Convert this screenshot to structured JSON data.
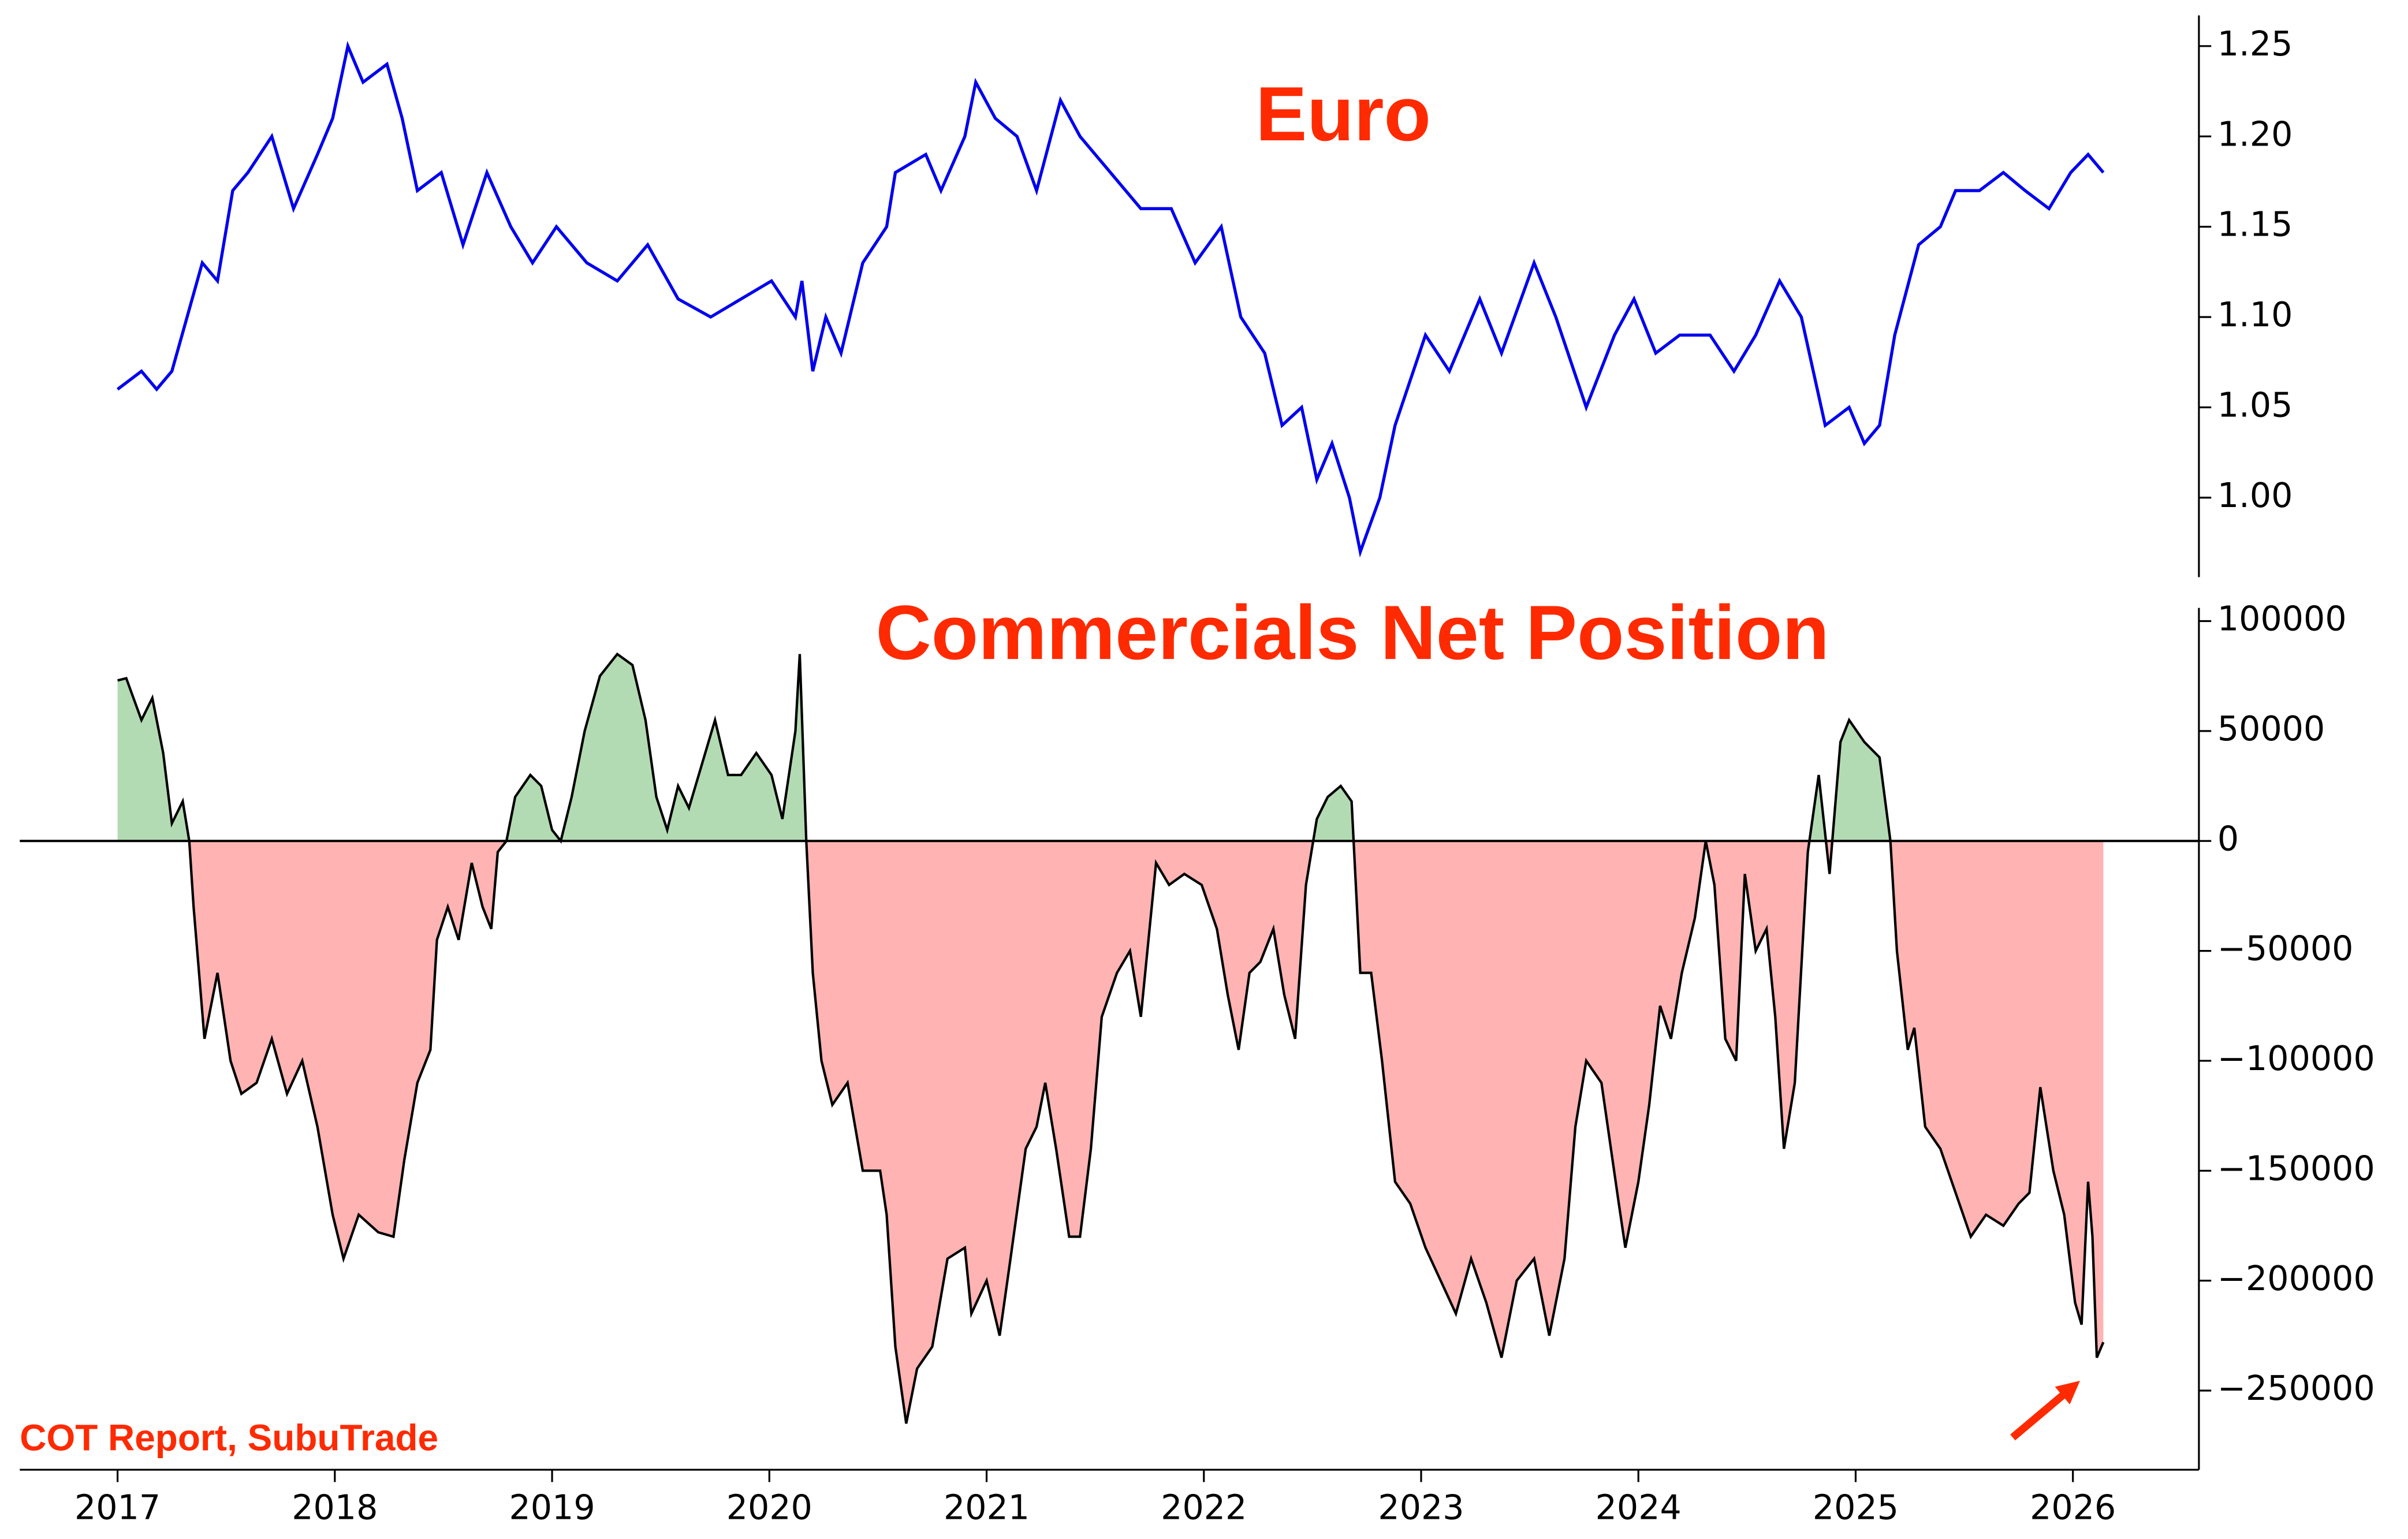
{
  "chart_data": [
    {
      "type": "line",
      "title": "Euro",
      "color": "#0000ee",
      "title_color": "#ff2a00",
      "xlim": [
        2016.55,
        2026.58
      ],
      "ylim": [
        0.956,
        1.267
      ],
      "yticks": [
        {
          "value": 1,
          "label": "1.00"
        },
        1.05,
        {
          "value": 1.1,
          "label": "1.10"
        },
        1.15,
        {
          "value": 1.2,
          "label": "1.20"
        },
        1.25
      ],
      "x": [
        2017.0,
        2017.11,
        2017.18,
        2017.25,
        2017.32,
        2017.39,
        2017.46,
        2017.53,
        2017.6,
        2017.71,
        2017.81,
        2017.92,
        2017.99,
        2018.06,
        2018.13,
        2018.24,
        2018.31,
        2018.38,
        2018.49,
        2018.59,
        2018.7,
        2018.81,
        2018.91,
        2019.02,
        2019.16,
        2019.3,
        2019.44,
        2019.58,
        2019.73,
        2019.87,
        2020.01,
        2020.12,
        2020.15,
        2020.2,
        2020.26,
        2020.33,
        2020.43,
        2020.54,
        2020.58,
        2020.72,
        2020.79,
        2020.9,
        2020.95,
        2021.04,
        2021.14,
        2021.23,
        2021.34,
        2021.43,
        2021.57,
        2021.71,
        2021.85,
        2021.96,
        2022.08,
        2022.17,
        2022.28,
        2022.36,
        2022.45,
        2022.52,
        2022.59,
        2022.67,
        2022.72,
        2022.81,
        2022.88,
        2023.02,
        2023.13,
        2023.27,
        2023.37,
        2023.52,
        2023.62,
        2023.76,
        2023.89,
        2023.98,
        2024.08,
        2024.19,
        2024.33,
        2024.44,
        2024.54,
        2024.65,
        2024.75,
        2024.86,
        2024.97,
        2025.04,
        2025.11,
        2025.18,
        2025.29,
        2025.39,
        2025.46,
        2025.57,
        2025.68,
        2025.78,
        2025.89,
        2025.99,
        2026.07,
        2026.14
      ],
      "values": [
        1.06,
        1.07,
        1.06,
        1.07,
        1.1,
        1.13,
        1.12,
        1.17,
        1.18,
        1.2,
        1.16,
        1.19,
        1.21,
        1.25,
        1.23,
        1.24,
        1.21,
        1.17,
        1.18,
        1.14,
        1.18,
        1.15,
        1.13,
        1.15,
        1.13,
        1.12,
        1.14,
        1.11,
        1.1,
        1.11,
        1.12,
        1.1,
        1.12,
        1.07,
        1.1,
        1.08,
        1.13,
        1.15,
        1.18,
        1.19,
        1.17,
        1.2,
        1.23,
        1.21,
        1.2,
        1.17,
        1.22,
        1.2,
        1.18,
        1.16,
        1.16,
        1.13,
        1.15,
        1.1,
        1.08,
        1.04,
        1.05,
        1.01,
        1.03,
        1.0,
        0.97,
        1.0,
        1.04,
        1.09,
        1.07,
        1.11,
        1.08,
        1.13,
        1.1,
        1.05,
        1.09,
        1.11,
        1.08,
        1.09,
        1.09,
        1.07,
        1.09,
        1.12,
        1.1,
        1.04,
        1.05,
        1.03,
        1.04,
        1.09,
        1.14,
        1.15,
        1.17,
        1.17,
        1.18,
        1.17,
        1.16,
        1.18,
        1.19,
        1.18
      ]
    },
    {
      "type": "area",
      "title": "Commercials Net Position",
      "color": "#000000",
      "title_color": "#ff2a00",
      "above_color": "#b3dbb3",
      "below_color": "#ffb3b3",
      "xlim": [
        2016.55,
        2026.58
      ],
      "ylim": [
        -286000,
        106000
      ],
      "xticks": [
        2017,
        2018,
        2019,
        2020,
        2021,
        2022,
        2023,
        2024,
        2025,
        2026
      ],
      "yticks": [
        {
          "value": -250000,
          "label": "−250000"
        },
        {
          "value": -200000,
          "label": "−200000"
        },
        {
          "value": -150000,
          "label": "−150000"
        },
        {
          "value": -100000,
          "label": "−100000"
        },
        {
          "value": -50000,
          "label": "−50000"
        },
        0,
        50000,
        100000
      ],
      "x": [
        2017.0,
        2017.04,
        2017.11,
        2017.16,
        2017.21,
        2017.25,
        2017.3,
        2017.33,
        2017.35,
        2017.4,
        2017.46,
        2017.52,
        2017.57,
        2017.64,
        2017.71,
        2017.78,
        2017.85,
        2017.92,
        2017.99,
        2018.04,
        2018.11,
        2018.2,
        2018.27,
        2018.32,
        2018.38,
        2018.44,
        2018.47,
        2018.52,
        2018.57,
        2018.63,
        2018.68,
        2018.72,
        2018.75,
        2018.79,
        2018.83,
        2018.9,
        2018.95,
        2019.0,
        2019.04,
        2019.09,
        2019.15,
        2019.22,
        2019.3,
        2019.37,
        2019.43,
        2019.48,
        2019.53,
        2019.58,
        2019.63,
        2019.69,
        2019.75,
        2019.81,
        2019.87,
        2019.94,
        2020.01,
        2020.06,
        2020.12,
        2020.14,
        2020.17,
        2020.2,
        2020.24,
        2020.29,
        2020.36,
        2020.43,
        2020.51,
        2020.54,
        2020.58,
        2020.63,
        2020.68,
        2020.75,
        2020.82,
        2020.9,
        2020.93,
        2021.0,
        2021.06,
        2021.11,
        2021.18,
        2021.23,
        2021.27,
        2021.32,
        2021.38,
        2021.43,
        2021.48,
        2021.53,
        2021.6,
        2021.66,
        2021.71,
        2021.75,
        2021.78,
        2021.84,
        2021.91,
        2021.99,
        2022.06,
        2022.11,
        2022.16,
        2022.21,
        2022.26,
        2022.32,
        2022.37,
        2022.42,
        2022.47,
        2022.52,
        2022.57,
        2022.63,
        2022.68,
        2022.72,
        2022.77,
        2022.82,
        2022.88,
        2022.95,
        2023.02,
        2023.09,
        2023.16,
        2023.23,
        2023.3,
        2023.37,
        2023.44,
        2023.52,
        2023.59,
        2023.66,
        2023.71,
        2023.76,
        2023.83,
        2023.91,
        2023.94,
        2024.0,
        2024.05,
        2024.1,
        2024.15,
        2024.2,
        2024.26,
        2024.31,
        2024.35,
        2024.4,
        2024.45,
        2024.49,
        2024.54,
        2024.59,
        2024.63,
        2024.67,
        2024.72,
        2024.78,
        2024.83,
        2024.88,
        2024.93,
        2024.97,
        2025.04,
        2025.11,
        2025.16,
        2025.19,
        2025.24,
        2025.27,
        2025.32,
        2025.39,
        2025.46,
        2025.53,
        2025.6,
        2025.68,
        2025.75,
        2025.8,
        2025.85,
        2025.91,
        2025.96,
        2026.01,
        2026.04,
        2026.07,
        2026.09,
        2026.11,
        2026.14
      ],
      "values": [
        73000,
        74000,
        55000,
        65000,
        40000,
        8000,
        18000,
        0,
        -30000,
        -90000,
        -60000,
        -100000,
        -115000,
        -110000,
        -90000,
        -115000,
        -100000,
        -130000,
        -170000,
        -190000,
        -170000,
        -178000,
        -180000,
        -145000,
        -110000,
        -95000,
        -45000,
        -30000,
        -45000,
        -10000,
        -30000,
        -40000,
        -5000,
        0,
        20000,
        30000,
        25000,
        5000,
        0,
        20000,
        50000,
        75000,
        85000,
        80000,
        55000,
        20000,
        5000,
        25000,
        15000,
        35000,
        55000,
        30000,
        30000,
        40000,
        30000,
        10000,
        50000,
        85000,
        0,
        -60000,
        -100000,
        -120000,
        -110000,
        -150000,
        -150000,
        -170000,
        -230000,
        -265000,
        -240000,
        -230000,
        -190000,
        -185000,
        -215000,
        -200000,
        -225000,
        -190000,
        -140000,
        -130000,
        -110000,
        -140000,
        -180000,
        -180000,
        -140000,
        -80000,
        -60000,
        -50000,
        -80000,
        -40000,
        -10000,
        -20000,
        -15000,
        -20000,
        -40000,
        -70000,
        -95000,
        -60000,
        -55000,
        -40000,
        -70000,
        -90000,
        -20000,
        10000,
        20000,
        25000,
        18000,
        -60000,
        -60000,
        -100000,
        -155000,
        -165000,
        -185000,
        -200000,
        -215000,
        -190000,
        -210000,
        -235000,
        -200000,
        -190000,
        -225000,
        -190000,
        -130000,
        -100000,
        -110000,
        -165000,
        -185000,
        -155000,
        -120000,
        -75000,
        -90000,
        -60000,
        -35000,
        0,
        -20000,
        -90000,
        -100000,
        -15000,
        -50000,
        -40000,
        -80000,
        -140000,
        -110000,
        -5000,
        30000,
        -15000,
        45000,
        55000,
        45000,
        38000,
        0,
        -50000,
        -95000,
        -85000,
        -130000,
        -140000,
        -160000,
        -180000,
        -170000,
        -175000,
        -165000,
        -160000,
        -112000,
        -150000,
        -170000,
        -210000,
        -220000,
        -155000,
        -180000,
        -235000,
        -228000
      ]
    }
  ],
  "source": "COT Report, SubuTrade"
}
